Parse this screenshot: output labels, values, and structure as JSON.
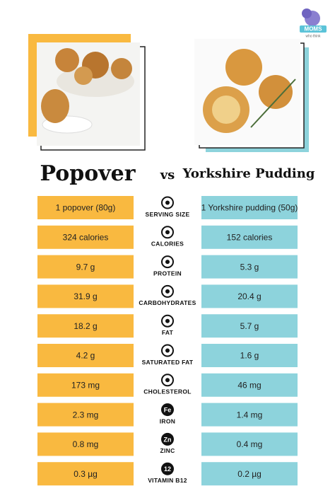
{
  "logo": {
    "name": "MOMS",
    "tagline": "who think"
  },
  "header": {
    "left": "Popover",
    "vs": "vs",
    "right": "Yorkshire Pudding"
  },
  "rows": [
    {
      "label": "SERVING SIZE",
      "left": "1 popover (80g)",
      "right": "1 Yorkshire pudding (50g)"
    },
    {
      "label": "CALORIES",
      "left": "324 calories",
      "right": "152 calories"
    },
    {
      "label": "PROTEIN",
      "left": "9.7 g",
      "right": "5.3 g"
    },
    {
      "label": "CARBOHYDRATES",
      "left": "31.9 g",
      "right": "20.4 g"
    },
    {
      "label": "FAT",
      "left": "18.2 g",
      "right": "5.7 g"
    },
    {
      "label": "SATURATED FAT",
      "left": "4.2 g",
      "right": "1.6 g"
    },
    {
      "label": "CHOLESTEROL",
      "left": "173 mg",
      "right": "46 mg"
    },
    {
      "label": "IRON",
      "left": "2.3 mg",
      "right": "1.4 mg",
      "icon": "Fe"
    },
    {
      "label": "ZINC",
      "left": "0.8 mg",
      "right": "0.4 mg",
      "icon": "Zn"
    },
    {
      "label": "VITAMIN B12",
      "left": "0.3 µg",
      "right": "0.2 µg",
      "icon": "12"
    }
  ]
}
